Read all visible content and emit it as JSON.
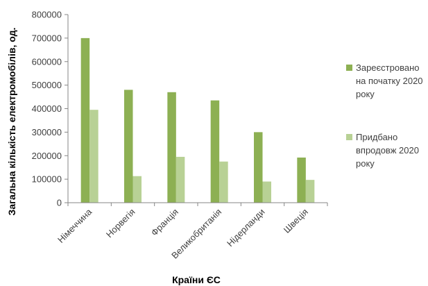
{
  "chart_data": {
    "type": "bar",
    "title": "",
    "xlabel": "Країни ЄС",
    "ylabel": "Загальна кількість електромобілів, од.",
    "categories": [
      "Німеччина",
      "Норвегія",
      "Франція",
      "Великобританія",
      "Нідерланди",
      "Швеція"
    ],
    "series": [
      {
        "name": "Зареєстровано на початку 2020 року",
        "legend_lines": [
          "Зареєстровано",
          "на початку 2020",
          "року"
        ],
        "color": "#8db053",
        "values": [
          700000,
          480000,
          470000,
          435000,
          300000,
          192000
        ]
      },
      {
        "name": "Придбано впродовж 2020 року",
        "legend_lines": [
          "Придбано",
          "впродовж 2020",
          "року"
        ],
        "color": "#b8d195",
        "values": [
          395000,
          113000,
          195000,
          175000,
          90000,
          97000
        ]
      }
    ],
    "ylim": [
      0,
      800000
    ],
    "yticks": [
      "0",
      "100000",
      "200000",
      "300000",
      "400000",
      "500000",
      "600000",
      "700000",
      "800000"
    ],
    "grid": false,
    "legend_position": "right"
  }
}
